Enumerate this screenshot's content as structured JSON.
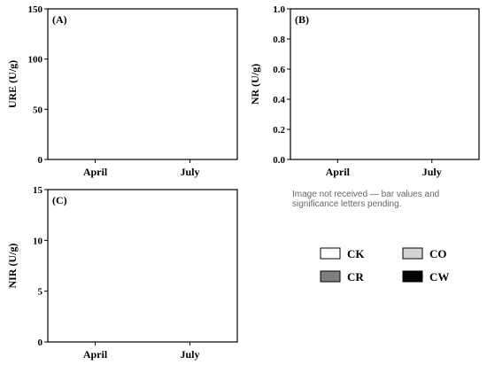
{
  "chart_data": [
    {
      "type": "bar",
      "panel_label": "(A)",
      "ylabel": "URE (U/g)",
      "categories": [
        "April",
        "July"
      ],
      "ylim": [
        0,
        150
      ],
      "yticks": [
        0,
        50,
        100,
        150
      ],
      "series": [
        {
          "name": "CK",
          "values": [
            null,
            null
          ],
          "errors": [
            null,
            null
          ],
          "labels": [
            "",
            ""
          ]
        },
        {
          "name": "CO",
          "values": [
            null,
            null
          ],
          "errors": [
            null,
            null
          ],
          "labels": [
            "",
            ""
          ]
        },
        {
          "name": "CR",
          "values": [
            null,
            null
          ],
          "errors": [
            null,
            null
          ],
          "labels": [
            "",
            ""
          ]
        },
        {
          "name": "CW",
          "values": [
            null,
            null
          ],
          "errors": [
            null,
            null
          ],
          "labels": [
            "",
            ""
          ]
        }
      ]
    },
    {
      "type": "bar",
      "panel_label": "(B)",
      "ylabel": "NR (U/g)",
      "categories": [
        "April",
        "July"
      ],
      "ylim": [
        0,
        1.0
      ],
      "yticks": [
        0.0,
        0.2,
        0.4,
        0.6,
        0.8,
        1.0
      ],
      "series": [
        {
          "name": "CK",
          "values": [
            null,
            null
          ],
          "errors": [
            null,
            null
          ],
          "labels": [
            "",
            ""
          ]
        },
        {
          "name": "CO",
          "values": [
            null,
            null
          ],
          "errors": [
            null,
            null
          ],
          "labels": [
            "",
            ""
          ]
        },
        {
          "name": "CR",
          "values": [
            null,
            null
          ],
          "errors": [
            null,
            null
          ],
          "labels": [
            "",
            ""
          ]
        },
        {
          "name": "CW",
          "values": [
            null,
            null
          ],
          "errors": [
            null,
            null
          ],
          "labels": [
            "",
            ""
          ]
        }
      ]
    },
    {
      "type": "bar",
      "panel_label": "(C)",
      "ylabel": "NIR (U/g)",
      "categories": [
        "April",
        "July"
      ],
      "ylim": [
        0,
        15
      ],
      "yticks": [
        0,
        5,
        10,
        15
      ],
      "series": [
        {
          "name": "CK",
          "values": [
            null,
            null
          ],
          "errors": [
            null,
            null
          ],
          "labels": [
            "",
            ""
          ]
        },
        {
          "name": "CO",
          "values": [
            null,
            null
          ],
          "errors": [
            null,
            null
          ],
          "labels": [
            "",
            ""
          ]
        },
        {
          "name": "CR",
          "values": [
            null,
            null
          ],
          "errors": [
            null,
            null
          ],
          "labels": [
            "",
            ""
          ]
        },
        {
          "name": "CW",
          "values": [
            null,
            null
          ],
          "errors": [
            null,
            null
          ],
          "labels": [
            "",
            ""
          ]
        }
      ]
    }
  ],
  "legend": {
    "placement": "bottom-right",
    "items": [
      {
        "name": "CK",
        "color": "#ffffff"
      },
      {
        "name": "CO",
        "color": "#d3d3d3"
      },
      {
        "name": "CR",
        "color": "#7f7f7f"
      },
      {
        "name": "CW",
        "color": "#000000"
      }
    ]
  },
  "notice": "Image not received — bar values and significance letters pending."
}
